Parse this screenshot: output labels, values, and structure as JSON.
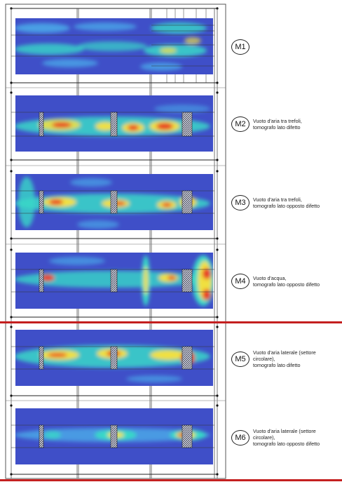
{
  "panels": [
    {
      "id": "M1",
      "description": ""
    },
    {
      "id": "M2",
      "description": "Vuoto d'aria tra trefoli,\ntomografo lato difetto"
    },
    {
      "id": "M3",
      "description": "Vuoto d'aria tra trefoli,\ntomografo lato opposto difetto"
    },
    {
      "id": "M4",
      "description": "Vuoto d'acqua,\ntomografo lato opposto difetto"
    },
    {
      "id": "M5",
      "description": "Vuoto d'aria laterale (settore\ncircolare),\ntomografo lato difetto"
    },
    {
      "id": "M6",
      "description": "Vuoto d'aria laterale (settore\ncircolare),\ntomografo lato opposto difetto"
    }
  ],
  "colors": {
    "background_field": "#3f4fc8",
    "cool": "#4aa7e8",
    "mid": "#38d8c8",
    "warm": "#f0e040",
    "hot": "#e83a28",
    "separator": "#c41f1f"
  }
}
